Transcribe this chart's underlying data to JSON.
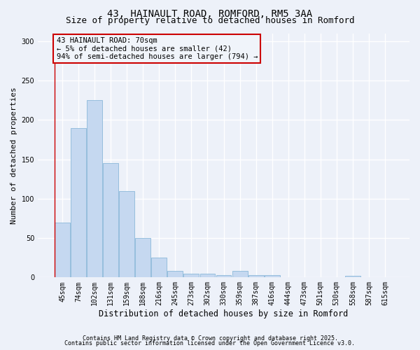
{
  "title1": "43, HAINAULT ROAD, ROMFORD, RM5 3AA",
  "title2": "Size of property relative to detached houses in Romford",
  "xlabel": "Distribution of detached houses by size in Romford",
  "ylabel": "Number of detached properties",
  "categories": [
    "45sqm",
    "74sqm",
    "102sqm",
    "131sqm",
    "159sqm",
    "188sqm",
    "216sqm",
    "245sqm",
    "273sqm",
    "302sqm",
    "330sqm",
    "359sqm",
    "387sqm",
    "416sqm",
    "444sqm",
    "473sqm",
    "501sqm",
    "530sqm",
    "558sqm",
    "587sqm",
    "615sqm"
  ],
  "values": [
    70,
    190,
    225,
    145,
    110,
    50,
    25,
    8,
    5,
    5,
    3,
    8,
    3,
    3,
    0,
    0,
    0,
    0,
    2,
    0,
    0
  ],
  "bar_color": "#c5d8f0",
  "bar_edge_color": "#7bafd4",
  "annotation_box_text": "43 HAINAULT ROAD: 70sqm\n← 5% of detached houses are smaller (42)\n94% of semi-detached houses are larger (794) →",
  "annotation_box_facecolor": "#f0f4fa",
  "annotation_box_edgecolor": "#cc0000",
  "red_line_x": 0,
  "ylim": [
    0,
    310
  ],
  "yticks": [
    0,
    50,
    100,
    150,
    200,
    250,
    300
  ],
  "footer1": "Contains HM Land Registry data © Crown copyright and database right 2025.",
  "footer2": "Contains public sector information licensed under the Open Government Licence v3.0.",
  "background_color": "#edf1f9",
  "grid_color": "#ffffff",
  "title_fontsize": 10,
  "subtitle_fontsize": 9,
  "tick_fontsize": 7,
  "ylabel_fontsize": 8,
  "xlabel_fontsize": 8.5,
  "annotation_fontsize": 7.5,
  "footer_fontsize": 6
}
